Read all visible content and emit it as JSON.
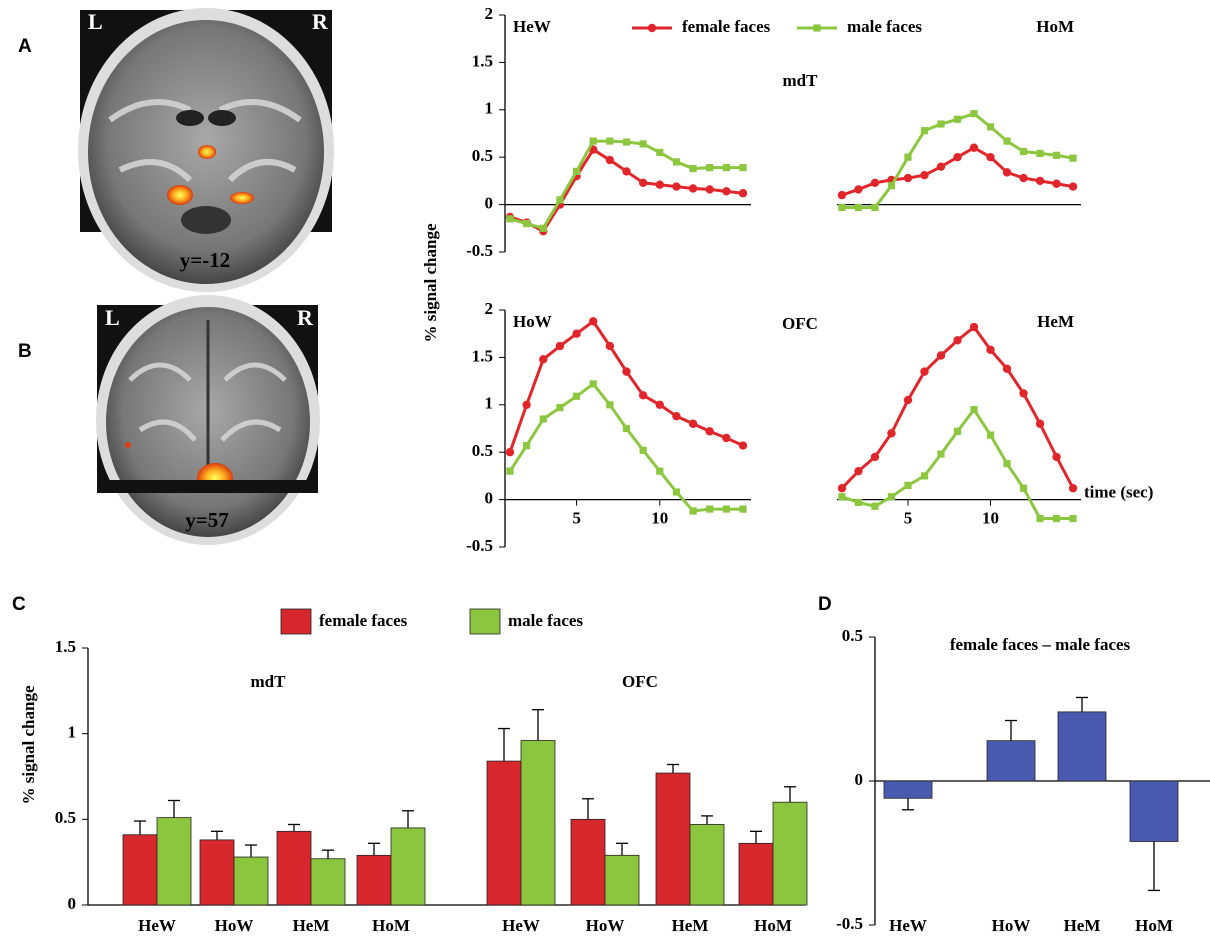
{
  "figure": {
    "panel_letters": [
      "A",
      "B",
      "C",
      "D"
    ],
    "images": [
      {
        "left": "L",
        "right": "R",
        "caption": "y=-12"
      },
      {
        "left": "L",
        "right": "R",
        "caption": "y=57"
      }
    ]
  },
  "chart_data": [
    {
      "type": "line",
      "title": "mdT",
      "label": "HeW",
      "ylabel": "% signal change",
      "x": [
        1,
        2,
        3,
        4,
        5,
        6,
        7,
        8,
        9,
        10,
        11,
        12,
        13,
        14,
        15
      ],
      "xlim": [
        0.7,
        15.3
      ],
      "ylim": [
        -0.5,
        2
      ],
      "yticks": [
        -0.5,
        0,
        0.5,
        1,
        1.5,
        2
      ],
      "series": [
        {
          "name": "female faces",
          "color": "#e0262b",
          "values": [
            -0.13,
            -0.19,
            -0.28,
            0.0,
            0.3,
            0.58,
            0.47,
            0.35,
            0.23,
            0.21,
            0.19,
            0.17,
            0.16,
            0.14,
            0.12
          ]
        },
        {
          "name": "male faces",
          "color": "#8dc63f",
          "values": [
            -0.15,
            -0.2,
            -0.25,
            0.05,
            0.35,
            0.67,
            0.67,
            0.66,
            0.64,
            0.55,
            0.45,
            0.38,
            0.39,
            0.39,
            0.39
          ]
        }
      ]
    },
    {
      "type": "line",
      "label": "HoM",
      "x": [
        1,
        2,
        3,
        4,
        5,
        6,
        7,
        8,
        9,
        10,
        11,
        12,
        13,
        14,
        15
      ],
      "xlim": [
        0.7,
        15.3
      ],
      "ylim": [
        -0.5,
        2
      ],
      "series": [
        {
          "color": "#e0262b",
          "values": [
            0.1,
            0.16,
            0.23,
            0.26,
            0.28,
            0.31,
            0.4,
            0.5,
            0.6,
            0.5,
            0.34,
            0.28,
            0.25,
            0.22,
            0.19
          ]
        },
        {
          "color": "#8dc63f",
          "values": [
            -0.03,
            -0.03,
            -0.03,
            0.2,
            0.5,
            0.78,
            0.85,
            0.9,
            0.96,
            0.82,
            0.67,
            0.56,
            0.54,
            0.52,
            0.49
          ]
        }
      ]
    },
    {
      "type": "line",
      "title": "OFC",
      "label": "HoW",
      "x": [
        1,
        2,
        3,
        4,
        5,
        6,
        7,
        8,
        9,
        10,
        11,
        12,
        13,
        14,
        15
      ],
      "xlim": [
        0.7,
        15.3
      ],
      "ylim": [
        -0.5,
        2
      ],
      "yticks": [
        -0.5,
        0,
        0.5,
        1,
        1.5,
        2
      ],
      "xticks": [
        5,
        10
      ],
      "series": [
        {
          "color": "#e0262b",
          "values": [
            0.5,
            1.0,
            1.48,
            1.62,
            1.75,
            1.88,
            1.62,
            1.35,
            1.1,
            1.0,
            0.88,
            0.8,
            0.72,
            0.65,
            0.57
          ]
        },
        {
          "color": "#8dc63f",
          "values": [
            0.3,
            0.57,
            0.85,
            0.97,
            1.09,
            1.22,
            1.0,
            0.75,
            0.52,
            0.3,
            0.08,
            -0.12,
            -0.1,
            -0.1,
            -0.1
          ]
        }
      ]
    },
    {
      "type": "line",
      "label": "HeM",
      "xlabel": "time (sec)",
      "x": [
        1,
        2,
        3,
        4,
        5,
        6,
        7,
        8,
        9,
        10,
        11,
        12,
        13,
        14,
        15
      ],
      "xlim": [
        0.7,
        15.3
      ],
      "ylim": [
        -0.5,
        2
      ],
      "xticks": [
        5,
        10
      ],
      "series": [
        {
          "color": "#e0262b",
          "values": [
            0.12,
            0.3,
            0.45,
            0.7,
            1.05,
            1.35,
            1.52,
            1.68,
            1.82,
            1.58,
            1.38,
            1.12,
            0.8,
            0.45,
            0.12
          ]
        },
        {
          "color": "#8dc63f",
          "values": [
            0.03,
            -0.03,
            -0.07,
            0.03,
            0.15,
            0.25,
            0.48,
            0.72,
            0.95,
            0.68,
            0.38,
            0.12,
            -0.2,
            -0.2,
            -0.2
          ]
        }
      ]
    },
    {
      "type": "bar",
      "title": "mdT",
      "ylabel": "% signal change",
      "categories": [
        "HeW",
        "HoW",
        "HeM",
        "HoM"
      ],
      "ylim": [
        0,
        1.5
      ],
      "yticks": [
        0,
        0.5,
        1,
        1.5
      ],
      "series": [
        {
          "name": "female faces",
          "color": "#d7282e",
          "values": [
            0.41,
            0.38,
            0.43,
            0.29
          ],
          "errors": [
            0.08,
            0.05,
            0.04,
            0.07
          ]
        },
        {
          "name": "male faces",
          "color": "#8cc63f",
          "values": [
            0.51,
            0.28,
            0.27,
            0.45
          ],
          "errors": [
            0.1,
            0.07,
            0.05,
            0.1
          ]
        }
      ]
    },
    {
      "type": "bar",
      "title": "OFC",
      "categories": [
        "HeW",
        "HoW",
        "HeM",
        "HoM"
      ],
      "ylim": [
        0,
        1.5
      ],
      "series": [
        {
          "color": "#d7282e",
          "values": [
            0.84,
            0.5,
            0.77,
            0.36
          ],
          "errors": [
            0.19,
            0.12,
            0.05,
            0.07
          ]
        },
        {
          "color": "#8cc63f",
          "values": [
            0.96,
            0.29,
            0.47,
            0.6
          ],
          "errors": [
            0.18,
            0.07,
            0.05,
            0.09
          ]
        }
      ]
    },
    {
      "type": "bar",
      "title": "female faces – male faces",
      "categories": [
        "HeW",
        "HoW",
        "HeM",
        "HoM"
      ],
      "ylim": [
        -0.5,
        0.5
      ],
      "yticks": [
        -0.5,
        0,
        0.5
      ],
      "color": "#4a5ab0",
      "values": [
        -0.06,
        0.14,
        0.24,
        -0.21
      ],
      "errors": [
        0.04,
        0.07,
        0.05,
        0.17
      ]
    }
  ]
}
